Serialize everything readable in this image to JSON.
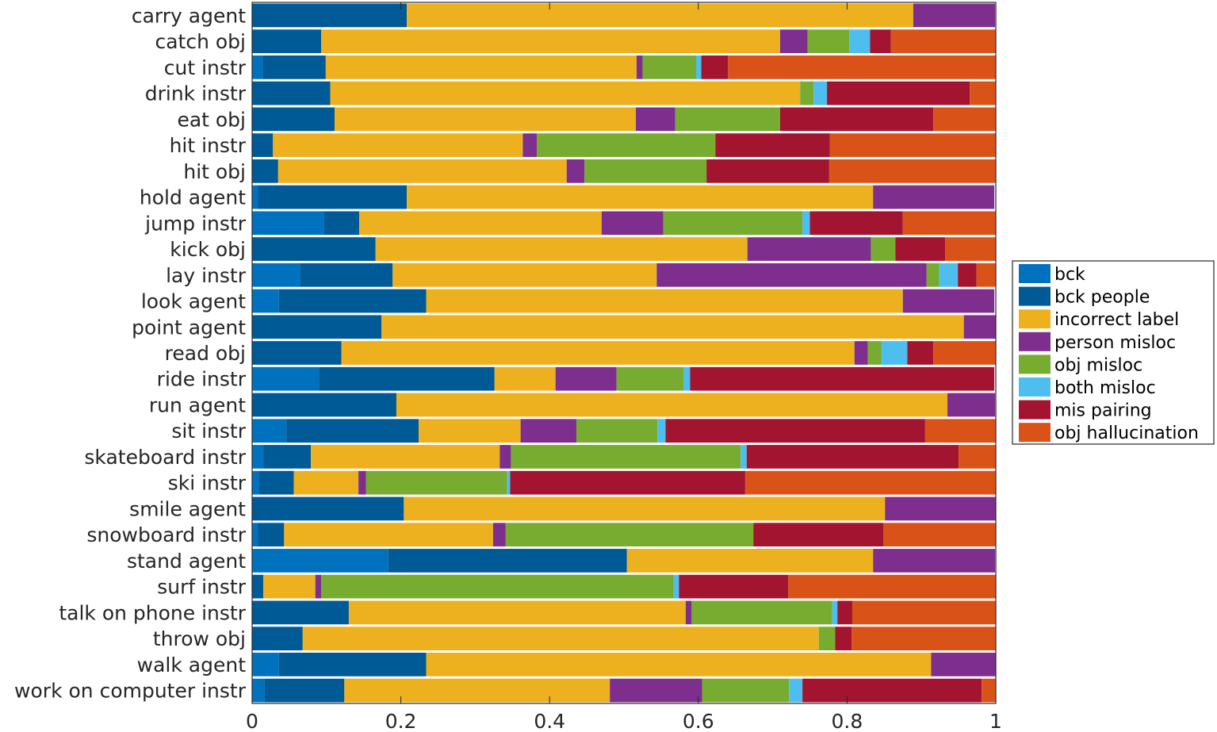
{
  "chart_data": {
    "type": "bar",
    "orientation": "horizontal",
    "stacked": true,
    "title": "",
    "xlabel": "",
    "ylabel": "",
    "xlim": [
      0,
      1
    ],
    "xticks": [
      "0",
      "0.2",
      "0.4",
      "0.6",
      "0.8",
      "1"
    ],
    "xtick_values": [
      0,
      0.2,
      0.4,
      0.6,
      0.8,
      1
    ],
    "legend_position": "right",
    "categories": [
      "carry agent",
      "catch obj",
      "cut instr",
      "drink instr",
      "eat obj",
      "hit instr",
      "hit obj",
      "hold agent",
      "jump instr",
      "kick obj",
      "lay instr",
      "look agent",
      "point agent",
      "read obj",
      "ride instr",
      "run agent",
      "sit instr",
      "skateboard instr",
      "ski instr",
      "smile agent",
      "snowboard instr",
      "stand agent",
      "surf instr",
      "talk on phone instr",
      "throw obj",
      "walk agent",
      "work on computer instr"
    ],
    "series": [
      {
        "name": "bck",
        "color": "#0072BD",
        "values": [
          0.0,
          0.0,
          0.014,
          0.0,
          0.0,
          0.0,
          0.0,
          0.008,
          0.097,
          0.0,
          0.065,
          0.036,
          0.0,
          0.0,
          0.09,
          0.0,
          0.046,
          0.015,
          0.009,
          0.0,
          0.008,
          0.183,
          0.0,
          0.0,
          0.0,
          0.036,
          0.017
        ]
      },
      {
        "name": "bck people",
        "color": "#005A96",
        "values": [
          0.208,
          0.093,
          0.085,
          0.105,
          0.111,
          0.028,
          0.035,
          0.2,
          0.047,
          0.166,
          0.124,
          0.198,
          0.174,
          0.12,
          0.236,
          0.194,
          0.178,
          0.064,
          0.047,
          0.204,
          0.035,
          0.321,
          0.015,
          0.13,
          0.068,
          0.198,
          0.107
        ]
      },
      {
        "name": "incorrect label",
        "color": "#EDB120",
        "values": [
          0.681,
          0.617,
          0.418,
          0.632,
          0.405,
          0.336,
          0.388,
          0.627,
          0.326,
          0.5,
          0.355,
          0.641,
          0.783,
          0.69,
          0.082,
          0.741,
          0.137,
          0.254,
          0.087,
          0.647,
          0.281,
          0.331,
          0.07,
          0.453,
          0.694,
          0.679,
          0.357
        ]
      },
      {
        "name": "person misloc",
        "color": "#7E2F8E",
        "values": [
          0.11,
          0.037,
          0.008,
          0.0,
          0.053,
          0.019,
          0.024,
          0.163,
          0.083,
          0.166,
          0.363,
          0.123,
          0.043,
          0.018,
          0.082,
          0.064,
          0.075,
          0.015,
          0.01,
          0.149,
          0.017,
          0.164,
          0.008,
          0.008,
          0.0,
          0.087,
          0.124
        ]
      },
      {
        "name": "obj misloc",
        "color": "#77AC30",
        "values": [
          0.0,
          0.056,
          0.072,
          0.018,
          0.141,
          0.24,
          0.164,
          0.0,
          0.187,
          0.033,
          0.017,
          0.0,
          0.0,
          0.018,
          0.09,
          0.0,
          0.109,
          0.309,
          0.19,
          0.0,
          0.333,
          0.0,
          0.474,
          0.189,
          0.022,
          0.0,
          0.117
        ]
      },
      {
        "name": "both misloc",
        "color": "#4DBEEE",
        "values": [
          0.0,
          0.028,
          0.007,
          0.018,
          0.0,
          0.0,
          0.0,
          0.0,
          0.01,
          0.0,
          0.025,
          0.0,
          0.0,
          0.035,
          0.009,
          0.0,
          0.011,
          0.008,
          0.004,
          0.0,
          0.0,
          0.0,
          0.007,
          0.007,
          0.0,
          0.0,
          0.018
        ]
      },
      {
        "name": "mis pairing",
        "color": "#A2142F",
        "values": [
          0.0,
          0.028,
          0.036,
          0.192,
          0.206,
          0.154,
          0.165,
          0.0,
          0.125,
          0.067,
          0.025,
          0.0,
          0.0,
          0.035,
          0.409,
          0.0,
          0.349,
          0.285,
          0.316,
          0.0,
          0.175,
          0.0,
          0.147,
          0.02,
          0.022,
          0.0,
          0.241
        ]
      },
      {
        "name": "obj hallucination",
        "color": "#D95319",
        "values": [
          0.0,
          0.141,
          0.36,
          0.035,
          0.084,
          0.223,
          0.224,
          0.0,
          0.125,
          0.068,
          0.026,
          0.0,
          0.0,
          0.084,
          0.0,
          0.0,
          0.095,
          0.05,
          0.337,
          0.0,
          0.151,
          0.0,
          0.279,
          0.193,
          0.194,
          0.0,
          0.019
        ]
      }
    ]
  }
}
